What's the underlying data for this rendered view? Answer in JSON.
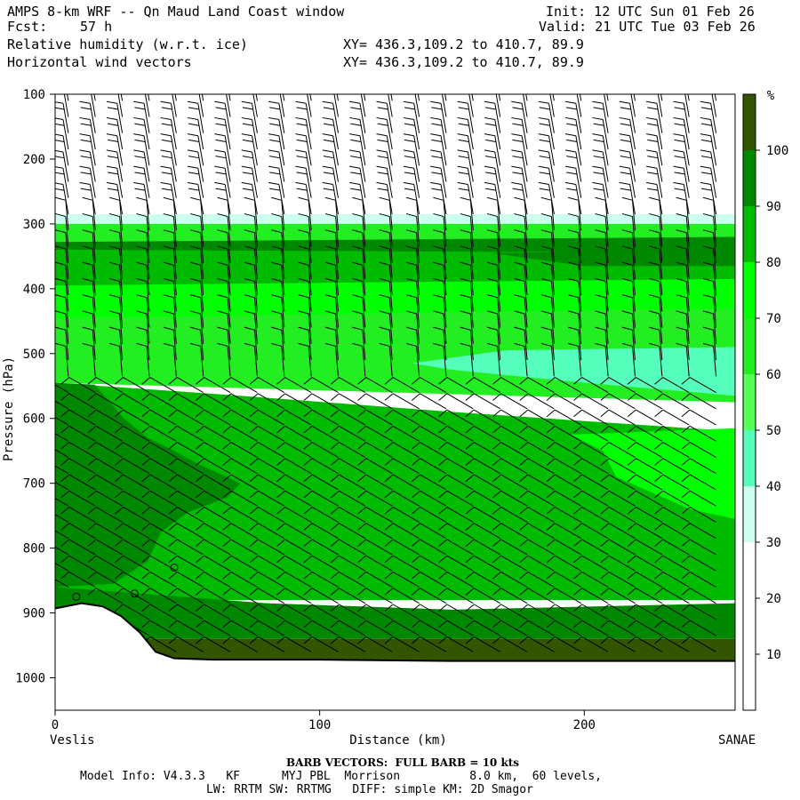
{
  "header": {
    "title": "AMPS 8-km WRF -- Qn Maud Land Coast window",
    "fcst_label": "Fcst:",
    "fcst_value": "57 h",
    "init": "Init: 12 UTC Sun 01 Feb 26",
    "valid": "Valid: 21 UTC Tue 03 Feb 26",
    "field1": "Relative humidity (w.r.t. ice)",
    "field2": "Horizontal wind vectors",
    "xy1": "XY= 436.3,109.2 to 410.7, 89.9",
    "xy2": "XY= 436.3,109.2 to 410.7, 89.9"
  },
  "footer": {
    "barb": "BARB VECTORS:  FULL BARB = 10 kts",
    "model_info": "Model Info: V4.3.3   KF      MYJ PBL  Morrison          8.0 km,  60 levels,",
    "physics": "LW: RRTM SW: RRTMG   DIFF: simple KM: 2D Smagor"
  },
  "chart_data": {
    "type": "heatmap",
    "title": "Relative humidity (w.r.t. ice)",
    "overlay": "Horizontal wind vectors (barbs, full barb = 10 kts)",
    "xlabel": "Distance (km)",
    "ylabel": "Pressure (hPa)",
    "xlim": [
      0,
      257
    ],
    "ylim": [
      1050,
      100
    ],
    "x_ticks": [
      0,
      100,
      200
    ],
    "y_ticks": [
      100,
      200,
      300,
      400,
      500,
      600,
      700,
      800,
      900,
      1000
    ],
    "x_left_label": "Veslis",
    "x_right_label": "SANAE",
    "colorbar": {
      "unit": "%",
      "ticks": [
        10,
        20,
        30,
        40,
        50,
        60,
        70,
        80,
        90,
        100
      ],
      "bands": [
        {
          "min": 0,
          "max": 30,
          "color": "#ffffff"
        },
        {
          "min": 30,
          "max": 40,
          "color": "#ccffee"
        },
        {
          "min": 40,
          "max": 50,
          "color": "#55ffbb"
        },
        {
          "min": 50,
          "max": 60,
          "color": "#55ff55"
        },
        {
          "min": 60,
          "max": 70,
          "color": "#22ee22"
        },
        {
          "min": 70,
          "max": 80,
          "color": "#00ff00"
        },
        {
          "min": 80,
          "max": 90,
          "color": "#00bb00"
        },
        {
          "min": 90,
          "max": 100,
          "color": "#008800"
        },
        {
          "min": 100,
          "max": 110,
          "color": "#335500"
        }
      ]
    },
    "regions": [
      {
        "name": "upper-white",
        "rh": 15,
        "color": "#ffffff",
        "points": [
          [
            0,
            100
          ],
          [
            257,
            100
          ],
          [
            257,
            285
          ],
          [
            0,
            285
          ]
        ]
      },
      {
        "name": "cloud-top-edge",
        "rh": 35,
        "color": "#ccffee",
        "points": [
          [
            0,
            285
          ],
          [
            257,
            285
          ],
          [
            257,
            300
          ],
          [
            0,
            300
          ]
        ]
      },
      {
        "name": "upper-60",
        "rh": 65,
        "color": "#22ee22",
        "points": [
          [
            0,
            300
          ],
          [
            257,
            300
          ],
          [
            257,
            575
          ],
          [
            0,
            545
          ]
        ]
      },
      {
        "name": "layer-90-330",
        "rh": 95,
        "color": "#008800",
        "points": [
          [
            0,
            328
          ],
          [
            257,
            320
          ],
          [
            257,
            345
          ],
          [
            0,
            340
          ]
        ]
      },
      {
        "name": "layer-80-360",
        "rh": 85,
        "color": "#00bb00",
        "points": [
          [
            0,
            340
          ],
          [
            257,
            345
          ],
          [
            257,
            385
          ],
          [
            0,
            395
          ]
        ]
      },
      {
        "name": "dark-right-300",
        "rh": 95,
        "color": "#008800",
        "points": [
          [
            165,
            345
          ],
          [
            257,
            340
          ],
          [
            257,
            365
          ],
          [
            200,
            365
          ]
        ]
      },
      {
        "name": "band-70-mid",
        "rh": 75,
        "color": "#00ff00",
        "points": [
          [
            0,
            395
          ],
          [
            257,
            385
          ],
          [
            257,
            430
          ],
          [
            0,
            445
          ]
        ]
      },
      {
        "name": "band-50-right",
        "rh": 45,
        "color": "#55ffbb",
        "points": [
          [
            135,
            515
          ],
          [
            170,
            495
          ],
          [
            257,
            490
          ],
          [
            257,
            565
          ],
          [
            200,
            545
          ],
          [
            150,
            525
          ]
        ]
      },
      {
        "name": "lower-80",
        "rh": 85,
        "color": "#00bb00",
        "points": [
          [
            0,
            545
          ],
          [
            70,
            565
          ],
          [
            150,
            590
          ],
          [
            257,
            620
          ],
          [
            257,
            880
          ],
          [
            0,
            880
          ]
        ]
      },
      {
        "name": "lower-70-right",
        "rh": 75,
        "color": "#00ff00",
        "points": [
          [
            195,
            625
          ],
          [
            257,
            615
          ],
          [
            257,
            755
          ],
          [
            240,
            740
          ],
          [
            212,
            690
          ],
          [
            207,
            650
          ]
        ]
      },
      {
        "name": "moist-90-left",
        "rh": 95,
        "color": "#008800",
        "points": [
          [
            0,
            545
          ],
          [
            15,
            548
          ],
          [
            26,
            600
          ],
          [
            35,
            630
          ],
          [
            45,
            650
          ],
          [
            55,
            672
          ],
          [
            70,
            700
          ],
          [
            65,
            722
          ],
          [
            50,
            745
          ],
          [
            40,
            775
          ],
          [
            35,
            820
          ],
          [
            22,
            855
          ],
          [
            0,
            860
          ]
        ]
      },
      {
        "name": "band-90-low",
        "rh": 95,
        "color": "#008800",
        "points": [
          [
            0,
            860
          ],
          [
            80,
            885
          ],
          [
            150,
            895
          ],
          [
            257,
            885
          ],
          [
            257,
            940
          ],
          [
            0,
            940
          ]
        ]
      },
      {
        "name": "band-100-sfc",
        "rh": 105,
        "color": "#335500",
        "points": [
          [
            0,
            940
          ],
          [
            257,
            940
          ],
          [
            257,
            990
          ],
          [
            0,
            990
          ]
        ]
      }
    ],
    "terrain": [
      [
        0,
        893
      ],
      [
        10,
        885
      ],
      [
        18,
        890
      ],
      [
        25,
        905
      ],
      [
        32,
        930
      ],
      [
        38,
        960
      ],
      [
        45,
        970
      ],
      [
        60,
        972
      ],
      [
        100,
        972
      ],
      [
        150,
        974
      ],
      [
        200,
        974
      ],
      [
        257,
        974
      ]
    ],
    "wind_barb_grid": {
      "x_start": 5,
      "x_step": 10.2,
      "p_start": 110,
      "p_step": 25
    },
    "circles": [
      [
        45,
        830
      ],
      [
        30,
        870
      ],
      [
        8,
        875
      ]
    ]
  }
}
